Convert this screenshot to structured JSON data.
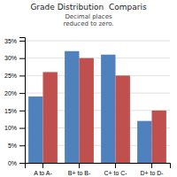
{
  "chart_data": {
    "type": "bar",
    "title": "Grade Distribution  Comparis",
    "annotations": [
      "Decimal places\nreduced to zero."
    ],
    "categories": [
      "A to A-",
      "B+ to B-",
      "C+ to C-",
      "D+ to D-"
    ],
    "series": [
      {
        "color": "#4F81BD",
        "values": [
          19,
          32,
          31,
          12
        ]
      },
      {
        "color": "#C0504D",
        "values": [
          26,
          30,
          25,
          15
        ]
      }
    ],
    "ylim": [
      0,
      36
    ],
    "yticks": [
      {
        "value": 0,
        "label": "0%"
      },
      {
        "value": 5,
        "label": "5%"
      },
      {
        "value": 10,
        "label": "10%"
      },
      {
        "value": 15,
        "label": "15%"
      },
      {
        "value": 20,
        "label": "20%"
      },
      {
        "value": 25,
        "label": "25%"
      },
      {
        "value": 30,
        "label": "30%"
      },
      {
        "value": 35,
        "label": "35%"
      }
    ],
    "grid": true
  }
}
